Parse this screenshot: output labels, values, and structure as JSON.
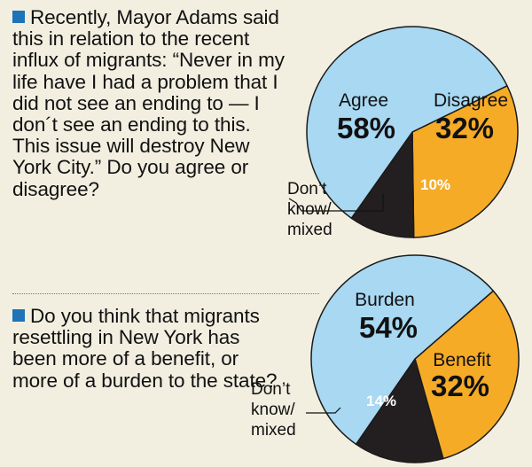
{
  "questions": [
    {
      "text": "Recently, Mayor Adams said this in relation to the recent influx of migrants: “Never in my life have I had a problem that I did not see an ending to — I don´t see an ending to this. This issue will destroy New York City.” Do you agree or disagree?"
    },
    {
      "text": "Do you think that migrants resettling in New York has been more of a benefit, or more of a burden to the state?"
    }
  ],
  "colors": {
    "blue": "#a8d8f2",
    "orange": "#f6ab27",
    "dark": "#231f20",
    "background": "#f2efe1",
    "bullet": "#1f73b7"
  },
  "chart_data": [
    {
      "type": "pie",
      "slices": [
        {
          "label": "Agree",
          "value": 58,
          "display": "58%",
          "color": "#a8d8f2"
        },
        {
          "label": "Disagree",
          "value": 32,
          "display": "32%",
          "color": "#f6ab27"
        },
        {
          "label": "Don’t know/ mixed",
          "value": 10,
          "display": "10%",
          "color": "#231f20"
        }
      ]
    },
    {
      "type": "pie",
      "slices": [
        {
          "label": "Burden",
          "value": 54,
          "display": "54%",
          "color": "#a8d8f2"
        },
        {
          "label": "Benefit",
          "value": 32,
          "display": "32%",
          "color": "#f6ab27"
        },
        {
          "label": "Don’t know/ mixed",
          "value": 14,
          "display": "14%",
          "color": "#231f20"
        }
      ]
    }
  ],
  "dk_lines": [
    [
      "Don’t",
      "know/",
      "mixed"
    ],
    [
      "Don’t",
      "know/",
      "mixed"
    ]
  ]
}
